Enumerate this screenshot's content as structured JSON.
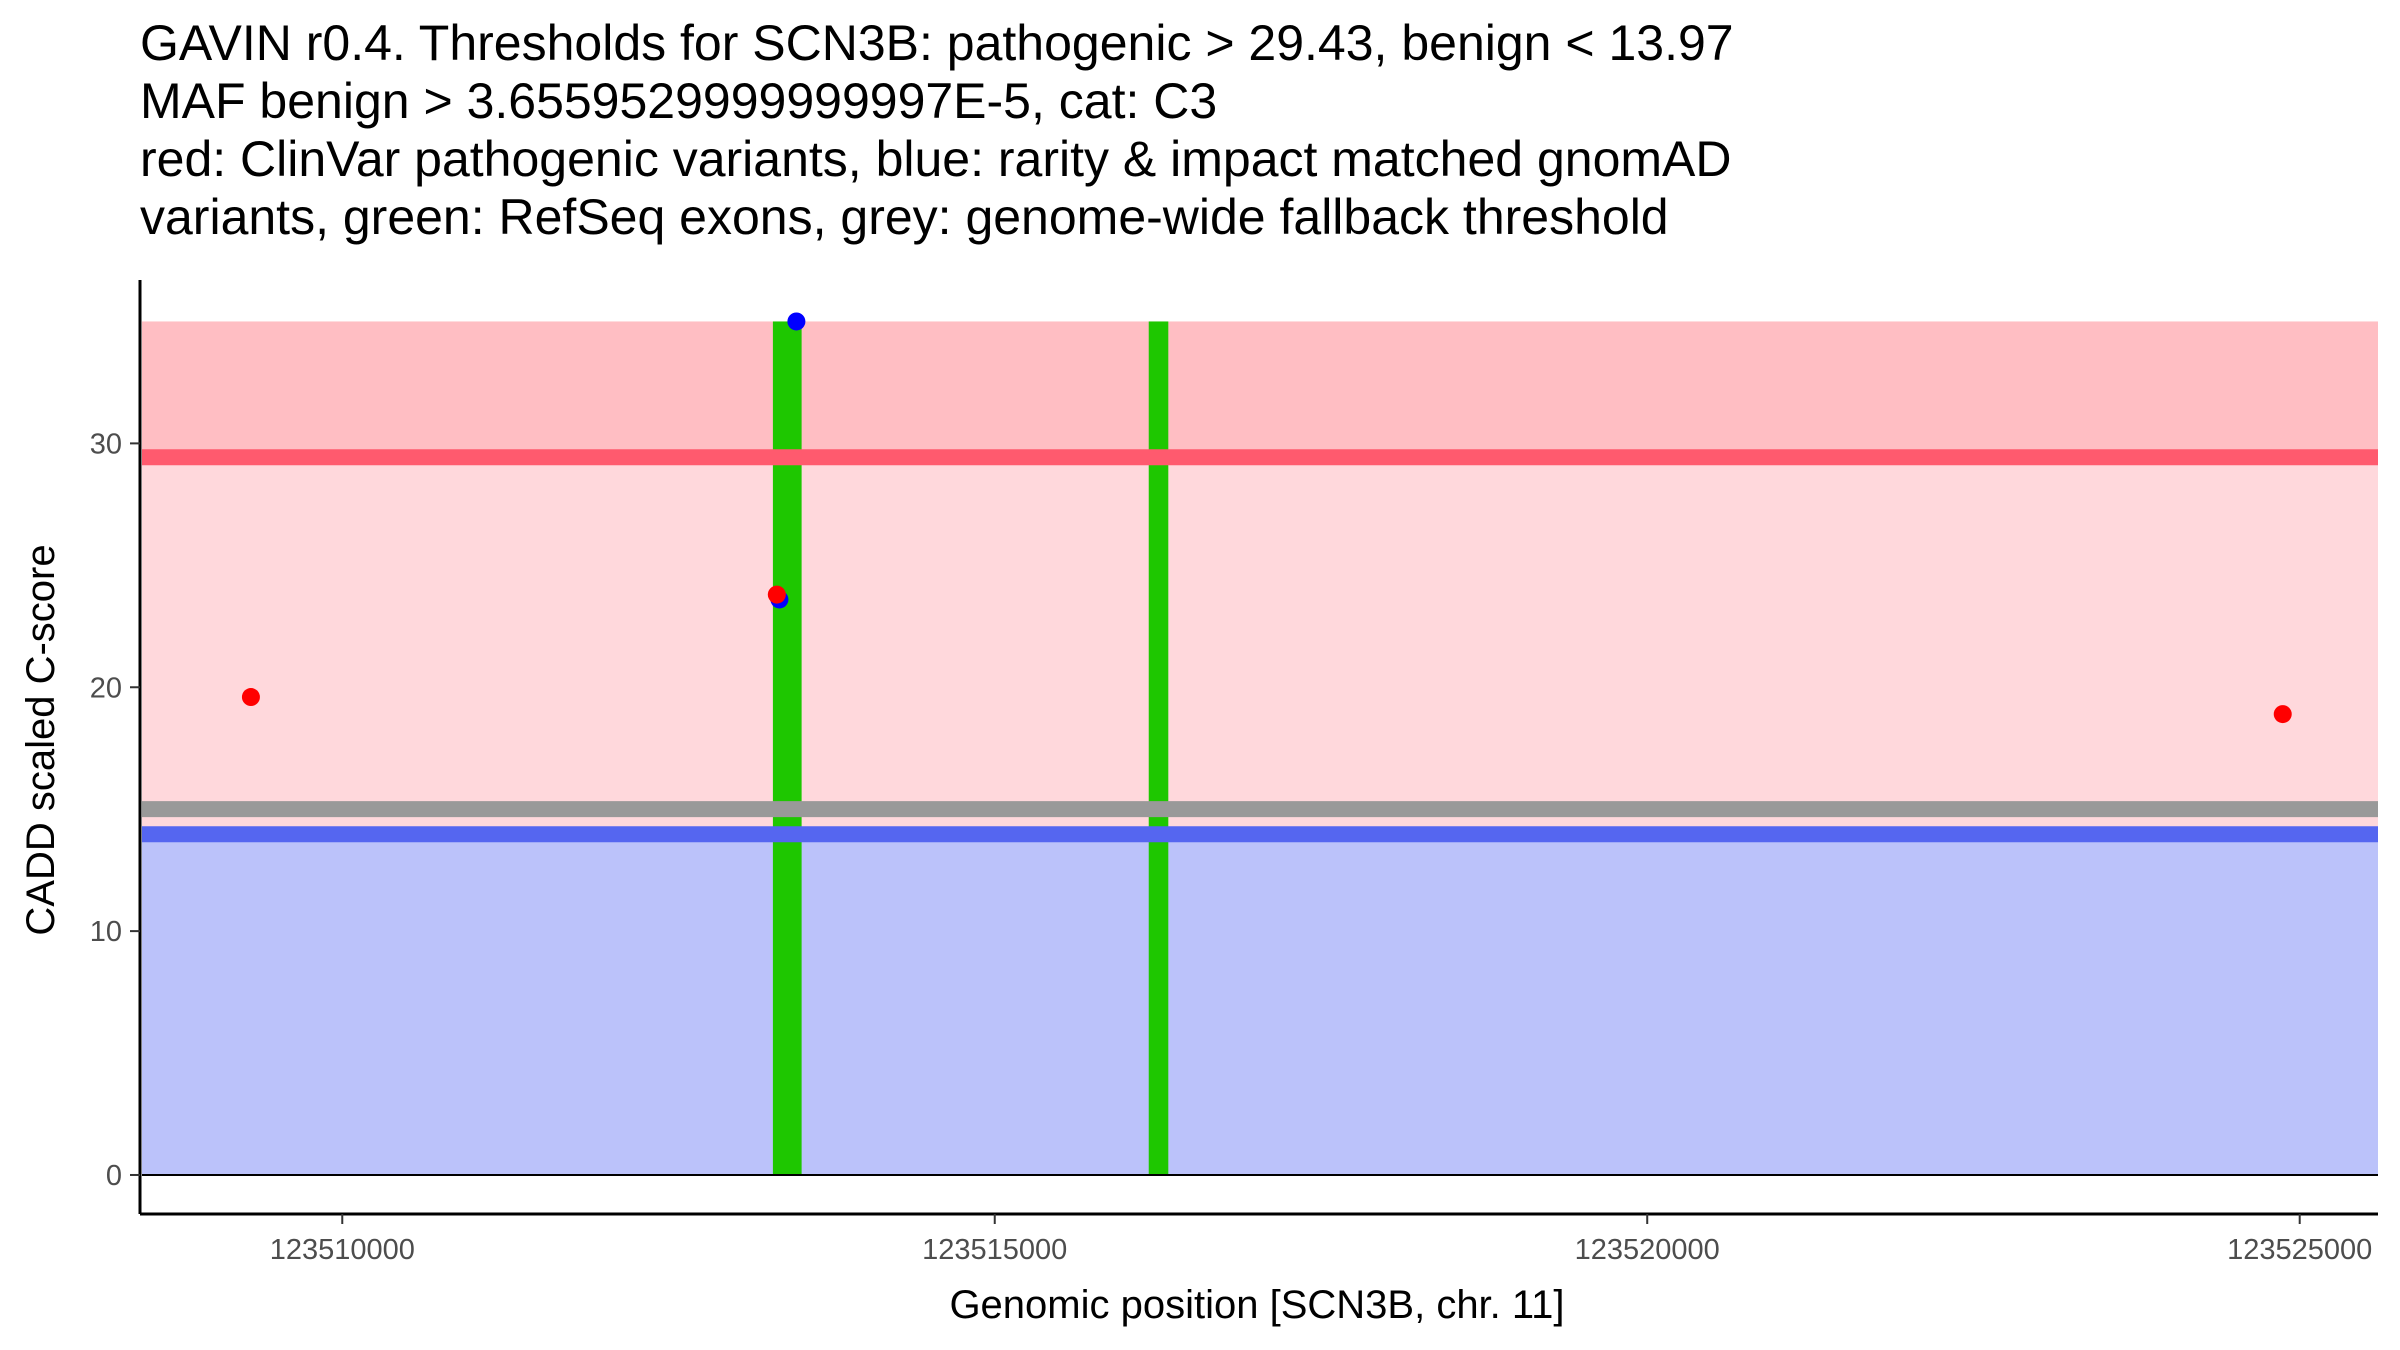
{
  "chart_data": {
    "type": "scatter",
    "title_lines": [
      "GAVIN r0.4. Thresholds for SCN3B: pathogenic > 29.43, benign < 13.97",
      "MAF benign > 3.6559529999999997E-5, cat: C3",
      "red: ClinVar pathogenic variants, blue: rarity & impact matched gnomAD",
      "variants, green: RefSeq exons, grey: genome-wide fallback threshold"
    ],
    "xlabel": "Genomic position [SCN3B, chr. 11]",
    "ylabel": "CADD scaled C-score",
    "xlim": [
      123508450,
      123525600
    ],
    "ylim": [
      -1.6,
      36.7
    ],
    "x_ticks": [
      123510000,
      123515000,
      123520000,
      123525000
    ],
    "x_tick_labels": [
      "123510000",
      "123515000",
      "123520000",
      "123525000"
    ],
    "y_ticks": [
      0,
      10,
      20,
      30
    ],
    "y_tick_labels": [
      "0",
      "10",
      "20",
      "30"
    ],
    "thresholds": {
      "pathogenic": 29.43,
      "benign": 13.97,
      "fallback": 15.0,
      "max": 35.0
    },
    "colors": {
      "pathogenic_band_upper": "#ffbec3",
      "pathogenic_band_lower": "#ffd8dc",
      "benign_band": "#bbc2fa",
      "pathogenic_line": "#ff5a6e",
      "benign_line": "#5566f0",
      "fallback_line": "#999999",
      "exon": "#1ec700",
      "clinvar_point": "#ff0000",
      "gnomad_point": "#0000ff"
    },
    "exons": [
      {
        "start": 123513300,
        "end": 123513520
      },
      {
        "start": 123516180,
        "end": 123516330
      }
    ],
    "series": [
      {
        "name": "ClinVar pathogenic variants",
        "color": "#ff0000",
        "points": [
          {
            "x": 123509300,
            "y": 19.6
          },
          {
            "x": 123513330,
            "y": 23.8
          },
          {
            "x": 123524870,
            "y": 18.9
          }
        ]
      },
      {
        "name": "rarity & impact matched gnomAD variants",
        "color": "#0000ff",
        "points": [
          {
            "x": 123513350,
            "y": 23.6
          },
          {
            "x": 123513480,
            "y": 35.0
          }
        ]
      }
    ]
  }
}
